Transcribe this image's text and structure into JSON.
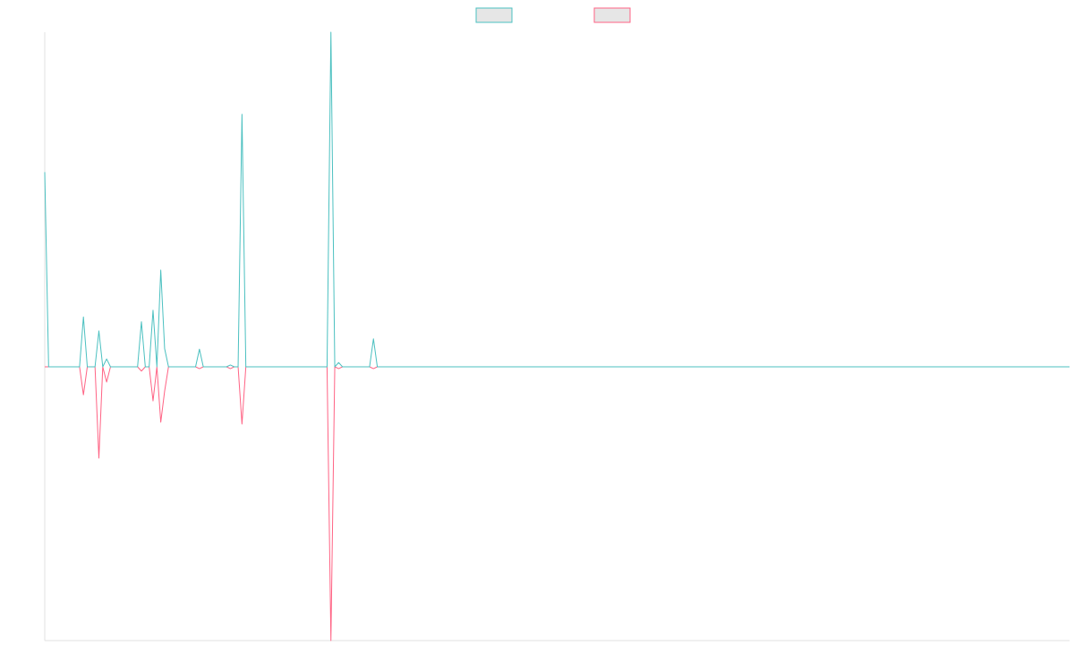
{
  "chart_data": {
    "type": "line",
    "x": [
      0,
      1,
      9,
      10,
      11,
      13,
      14,
      15,
      16,
      17,
      24,
      25,
      26,
      27,
      28,
      29,
      30,
      31,
      32,
      39,
      40,
      41,
      47,
      48,
      49,
      50,
      51,
      52,
      73,
      74,
      75,
      76,
      77,
      78,
      84,
      85,
      86,
      265
    ],
    "xlim": [
      0,
      265
    ],
    "ylim": [
      -45,
      55
    ],
    "series": [
      {
        "color": "#ff6384",
        "values": [
          0,
          0,
          0,
          -4.6,
          0,
          0,
          -15,
          0,
          -2.5,
          0,
          0,
          -0.7,
          0,
          0,
          -5.6,
          0,
          -9.1,
          -4,
          0,
          0,
          -0.3,
          0,
          0,
          -0.3,
          0,
          0,
          -9.4,
          0,
          0,
          -45,
          0,
          -0.3,
          0,
          0,
          0,
          -0.3,
          0,
          0
        ]
      },
      {
        "color": "#4bc0c0",
        "values": [
          32,
          0,
          0,
          8.2,
          0,
          0,
          5.9,
          0,
          1.3,
          0,
          0,
          7.4,
          0,
          0,
          9.3,
          0,
          15.9,
          3,
          0,
          0,
          2.9,
          0,
          0,
          0.3,
          0,
          0,
          41.5,
          0,
          0,
          55,
          0,
          0.7,
          0,
          0,
          0,
          4.6,
          0,
          0
        ]
      }
    ]
  }
}
